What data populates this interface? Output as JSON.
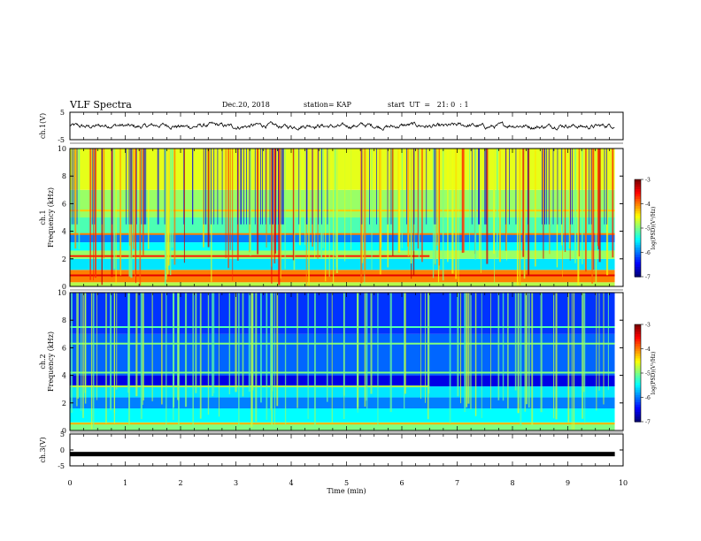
{
  "header": {
    "title": "VLF Spectra",
    "date": "Dec.20, 2018",
    "station": "station= KAP",
    "start": "start  UT  =   21: 0  : 1"
  },
  "chart_data": [
    {
      "type": "line",
      "panel": "ch1-waveform",
      "ylabel": "ch.1(V)",
      "ylim": [
        -5,
        5
      ],
      "yticks": [
        "5",
        "-5"
      ],
      "xlim": [
        0,
        10
      ],
      "series": [
        {
          "color": "#000000",
          "description_values": "noisy waveform around 0 V, amplitude ~±1.5 V"
        }
      ]
    },
    {
      "type": "heatmap",
      "panel": "ch1-spectrogram",
      "ylabel_line1": "ch.1",
      "ylabel_line2": "Frequency (kHz)",
      "ylim": [
        0,
        10
      ],
      "yticks": [
        "0",
        "2",
        "4",
        "6",
        "8",
        "10"
      ],
      "xlim": [
        0,
        9.85
      ],
      "colorbar": {
        "label": "log(PSD)(V²/Hz)",
        "range": [
          -7,
          -3
        ],
        "ticks": [
          "-3",
          "-4",
          "-5",
          "-6",
          "-7"
        ]
      },
      "bands": [
        {
          "f_lo": 0.0,
          "f_hi": 0.3,
          "level": -4.8
        },
        {
          "f_lo": 0.3,
          "f_hi": 1.2,
          "level": -4.0
        },
        {
          "f_lo": 1.2,
          "f_hi": 2.0,
          "level": -5.6
        },
        {
          "f_lo": 2.0,
          "f_hi": 2.6,
          "level": -4.9
        },
        {
          "f_lo": 2.6,
          "f_hi": 3.2,
          "level": -5.5
        },
        {
          "f_lo": 3.2,
          "f_hi": 3.8,
          "level": -6.0
        },
        {
          "f_lo": 3.8,
          "f_hi": 5.0,
          "level": -5.2
        },
        {
          "f_lo": 5.0,
          "f_hi": 7.0,
          "level": -4.9
        },
        {
          "f_lo": 7.0,
          "f_hi": 10.0,
          "level": -4.6
        }
      ],
      "lines": [
        {
          "f": 0.8,
          "level": -3.4,
          "t_end": 9.85
        },
        {
          "f": 2.2,
          "level": -3.6,
          "t_end": 6.5
        },
        {
          "f": 3.8,
          "level": -4.0,
          "t_end": 9.85
        },
        {
          "f": 5.5,
          "level": -4.3,
          "t_end": 9.85
        }
      ],
      "bursts": {
        "count": 150,
        "level_range": [
          -5.2,
          -3.2
        ],
        "f_floor": 3.0
      },
      "dropouts": {
        "count": 90,
        "level": -6.6
      }
    },
    {
      "type": "heatmap",
      "panel": "ch2-spectrogram",
      "ylabel_line1": "ch.2",
      "ylabel_line2": "Frequency (kHz)",
      "ylim": [
        0,
        10
      ],
      "yticks": [
        "0",
        "2",
        "4",
        "6",
        "8",
        "10"
      ],
      "xlim": [
        0,
        9.85
      ],
      "colorbar": {
        "label": "log(PSD)(V²/Hz)",
        "range": [
          -7,
          -3
        ],
        "ticks": [
          "-3",
          "-4",
          "-5",
          "-6",
          "-7"
        ]
      },
      "bands": [
        {
          "f_lo": 0.0,
          "f_hi": 0.6,
          "level": -5.0
        },
        {
          "f_lo": 0.6,
          "f_hi": 1.6,
          "level": -5.5
        },
        {
          "f_lo": 1.6,
          "f_hi": 2.4,
          "level": -6.0
        },
        {
          "f_lo": 2.4,
          "f_hi": 3.2,
          "level": -5.6
        },
        {
          "f_lo": 3.2,
          "f_hi": 4.0,
          "level": -6.6
        },
        {
          "f_lo": 4.0,
          "f_hi": 7.0,
          "level": -6.1
        },
        {
          "f_lo": 7.0,
          "f_hi": 10.0,
          "level": -6.3
        }
      ],
      "lines": [
        {
          "f": 0.5,
          "level": -4.2,
          "t_end": 9.85
        },
        {
          "f": 3.2,
          "level": -3.6,
          "t_end": 1.5
        },
        {
          "f": 3.2,
          "level": -4.8,
          "t_end": 6.5
        },
        {
          "f": 4.2,
          "level": -5.0,
          "t_end": 9.85
        },
        {
          "f": 6.3,
          "level": -5.0,
          "t_end": 9.85
        },
        {
          "f": 7.5,
          "level": -5.2,
          "t_end": 9.85
        }
      ],
      "bursts": {
        "count": 110,
        "level_range": [
          -5.2,
          -4.6
        ],
        "f_floor": 3.0
      },
      "dropouts": {
        "count": 0,
        "level": -7
      }
    },
    {
      "type": "line",
      "panel": "ch3-waveform",
      "ylabel": "ch.3(V)",
      "ylim": [
        -5,
        5
      ],
      "yticks": [
        "5",
        "0",
        "-5"
      ],
      "xlim": [
        0,
        10
      ],
      "series": [
        {
          "color": "#000000",
          "constant": -1.3
        }
      ]
    }
  ],
  "xaxis": {
    "label": "Time (min)",
    "ticks": [
      "0",
      "1",
      "2",
      "3",
      "4",
      "5",
      "6",
      "7",
      "8",
      "9",
      "10"
    ],
    "range": [
      0,
      10
    ]
  }
}
